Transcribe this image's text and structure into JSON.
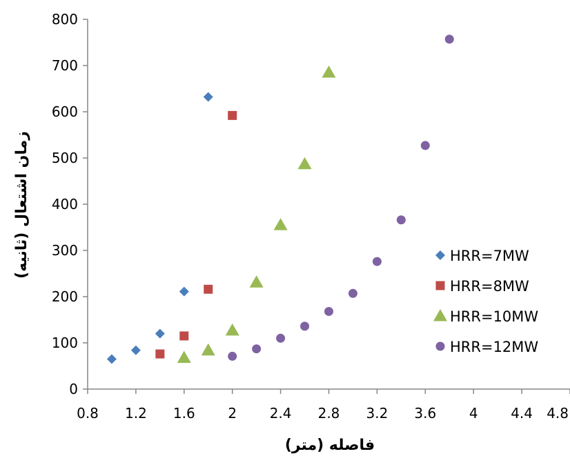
{
  "chart_data": {
    "type": "scatter",
    "xlabel": "فاصله (متر)",
    "ylabel": "زمان اشتعال (ثانیه)",
    "xlim": [
      0.8,
      4.8
    ],
    "ylim": [
      0,
      800
    ],
    "xticks": [
      "0.8",
      "1.2",
      "1.6",
      "2",
      "2.4",
      "2.8",
      "3.2",
      "3.6",
      "4",
      "4.4",
      "4.8"
    ],
    "yticks": [
      "0",
      "100",
      "200",
      "300",
      "400",
      "500",
      "600",
      "700",
      "800"
    ],
    "grid": false,
    "legend_position": "right",
    "series": [
      {
        "name": "HRR=7MW",
        "marker": "diamond",
        "color": "#4a7ebb",
        "points": [
          [
            1.0,
            65
          ],
          [
            1.2,
            84
          ],
          [
            1.4,
            120
          ],
          [
            1.6,
            211
          ],
          [
            1.8,
            632
          ]
        ]
      },
      {
        "name": "HRR=8MW",
        "marker": "square",
        "color": "#be4b48",
        "points": [
          [
            1.4,
            76
          ],
          [
            1.6,
            115
          ],
          [
            1.8,
            216
          ],
          [
            2.0,
            592
          ]
        ]
      },
      {
        "name": "HRR=10MW",
        "marker": "triangle",
        "color": "#98b954",
        "points": [
          [
            1.6,
            68
          ],
          [
            1.8,
            84
          ],
          [
            2.0,
            127
          ],
          [
            2.2,
            231
          ],
          [
            2.4,
            355
          ],
          [
            2.6,
            487
          ],
          [
            2.8,
            685
          ]
        ]
      },
      {
        "name": "HRR=12MW",
        "marker": "circle",
        "color": "#7e62a1",
        "points": [
          [
            2.0,
            71
          ],
          [
            2.2,
            87
          ],
          [
            2.4,
            110
          ],
          [
            2.6,
            136
          ],
          [
            2.8,
            168
          ],
          [
            3.0,
            207
          ],
          [
            3.2,
            276
          ],
          [
            3.4,
            366
          ],
          [
            3.6,
            527
          ],
          [
            3.8,
            757
          ]
        ]
      }
    ]
  }
}
